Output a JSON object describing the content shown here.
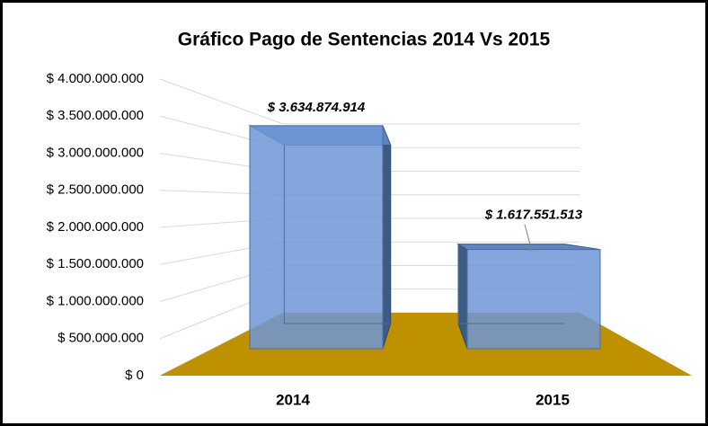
{
  "chart_data": {
    "type": "bar3d",
    "title": "Gráfico Pago de Sentencias 2014 Vs 2015",
    "categories": [
      "2014",
      "2015"
    ],
    "values": [
      3634874914,
      1617551513
    ],
    "value_labels": [
      "$ 3.634.874.914",
      "$ 1.617.551.513"
    ],
    "color": "#6f97d6",
    "floor_color": "#bf9000",
    "ylim": [
      0,
      4000000000
    ],
    "yticks": [
      {
        "value": 0,
        "label": "$ 0"
      },
      {
        "value": 500000000,
        "label": "$ 500.000.000"
      },
      {
        "value": 1000000000,
        "label": "$ 1.000.000.000"
      },
      {
        "value": 1500000000,
        "label": "$ 1.500.000.000"
      },
      {
        "value": 2000000000,
        "label": "$ 2.000.000.000"
      },
      {
        "value": 2500000000,
        "label": "$ 2.500.000.000"
      },
      {
        "value": 3000000000,
        "label": "$ 3.000.000.000"
      },
      {
        "value": 3500000000,
        "label": "$ 3.500.000.000"
      },
      {
        "value": 4000000000,
        "label": "$ 4.000.000.000"
      }
    ],
    "grid": true
  }
}
